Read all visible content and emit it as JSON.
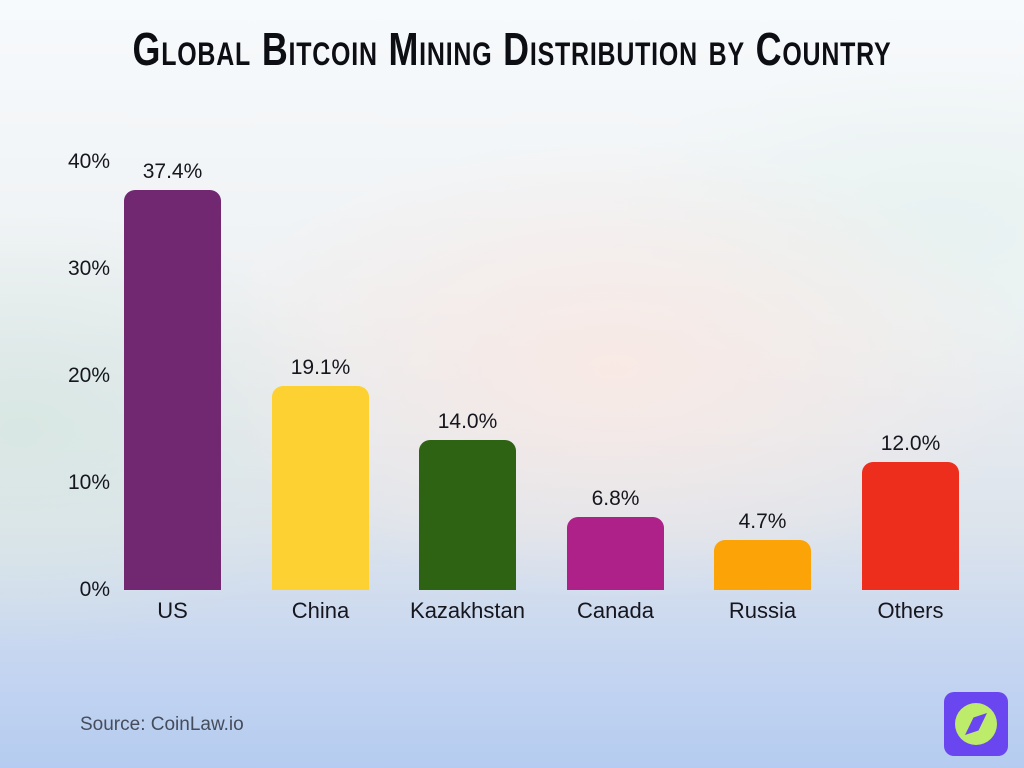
{
  "title": "Global Bitcoin Mining Distribution by Country",
  "source": {
    "label": "Source: CoinLaw.io"
  },
  "logo": {
    "icon": "compass-icon",
    "bg_color": "#6a46f0",
    "circle_color": "#bdeb6a"
  },
  "colors": {
    "title_text": "#0d0d14",
    "label_text": "#16161e",
    "source_text": "#454c5c"
  },
  "chart_data": {
    "type": "bar",
    "title": "Global Bitcoin Mining Distribution by Country",
    "categories": [
      "US",
      "China",
      "Kazakhstan",
      "Canada",
      "Russia",
      "Others"
    ],
    "values": [
      37.4,
      19.1,
      14.0,
      6.8,
      4.7,
      12.0
    ],
    "value_labels": [
      "37.4%",
      "19.1%",
      "14.0%",
      "6.8%",
      "4.7%",
      "12.0%"
    ],
    "bar_colors": [
      "#722771",
      "#fdd131",
      "#2f6314",
      "#ad2189",
      "#fca307",
      "#ee2e1d"
    ],
    "xlabel": "",
    "ylabel": "",
    "ylim": [
      0,
      40
    ],
    "yticks": [
      0,
      10,
      20,
      30,
      40
    ],
    "ytick_labels": [
      "0%",
      "10%",
      "20%",
      "30%",
      "40%"
    ],
    "grid": false,
    "legend": false
  }
}
